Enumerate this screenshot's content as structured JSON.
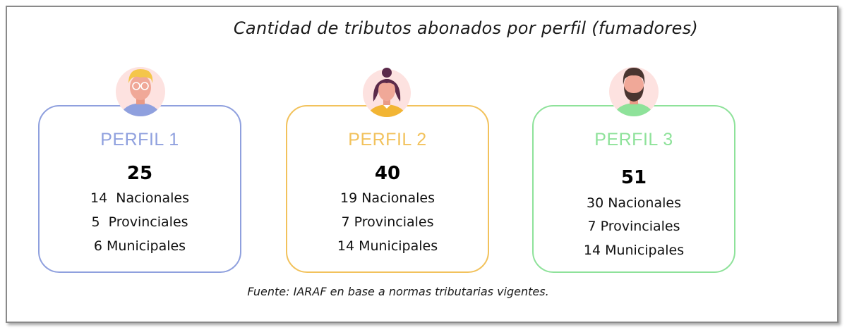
{
  "title": "Cantidad de tributos abonados por perfil (fumadores)",
  "source": "Fuente: IARAF en base a normas tributarias vigentes.",
  "colors": {
    "perfil1": "#8fa0de",
    "perfil2": "#f2c25c",
    "perfil3": "#8ee29a",
    "avatar_bg": "#fde2e0"
  },
  "profiles": [
    {
      "name": "PERFIL 1",
      "avatar": "man-glasses-icon",
      "total": "25",
      "lines": [
        "14  Nacionales",
        "5  Provinciales",
        "6 Municipales"
      ]
    },
    {
      "name": "PERFIL 2",
      "avatar": "woman-bun-icon",
      "total": "40",
      "lines": [
        "19 Nacionales",
        "7 Provinciales",
        "14 Municipales"
      ]
    },
    {
      "name": "PERFIL 3",
      "avatar": "bearded-man-icon",
      "total": "51",
      "lines": [
        "30 Nacionales",
        "7 Provinciales",
        "14 Municipales"
      ]
    }
  ]
}
